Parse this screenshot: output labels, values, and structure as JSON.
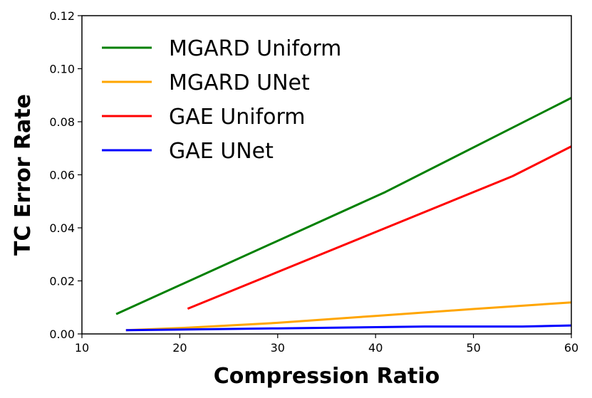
{
  "chart_data": {
    "type": "line",
    "title": "",
    "xlabel": "Compression Ratio",
    "ylabel": "TC Error Rate",
    "xlim": [
      10,
      60
    ],
    "ylim": [
      0.0,
      0.12
    ],
    "xticks": [
      10,
      20,
      30,
      40,
      50,
      60
    ],
    "yticks": [
      0.0,
      0.02,
      0.04,
      0.06,
      0.08,
      0.1,
      0.12
    ],
    "xtick_labels": [
      "10",
      "20",
      "30",
      "40",
      "50",
      "60"
    ],
    "ytick_labels": [
      "0.00",
      "0.02",
      "0.04",
      "0.06",
      "0.08",
      "0.10",
      "0.12"
    ],
    "grid": false,
    "legend_position": "top-left",
    "series": [
      {
        "name": "MGARD Uniform",
        "color": "#008000",
        "x": [
          13.5,
          41,
          60
        ],
        "y": [
          0.0075,
          0.0535,
          0.089
        ]
      },
      {
        "name": "MGARD UNet",
        "color": "#FFA500",
        "x": [
          14.5,
          20,
          30,
          40,
          50,
          60
        ],
        "y": [
          0.0014,
          0.0022,
          0.0042,
          0.0068,
          0.0094,
          0.0119
        ]
      },
      {
        "name": "GAE Uniform",
        "color": "#FF0000",
        "x": [
          20.8,
          54,
          60
        ],
        "y": [
          0.0095,
          0.0595,
          0.0707
        ]
      },
      {
        "name": "GAE UNet",
        "color": "#0000FF",
        "x": [
          14.5,
          30,
          45,
          55,
          60
        ],
        "y": [
          0.0014,
          0.0021,
          0.0028,
          0.0028,
          0.0032
        ]
      }
    ]
  }
}
